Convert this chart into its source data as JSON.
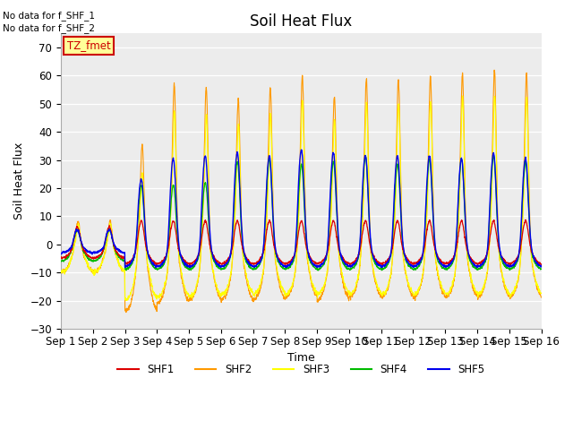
{
  "title": "Soil Heat Flux",
  "ylabel": "Soil Heat Flux",
  "xlabel": "Time",
  "ylim": [
    -30,
    75
  ],
  "yticks": [
    -30,
    -20,
    -10,
    0,
    10,
    20,
    30,
    40,
    50,
    60,
    70
  ],
  "n_days": 15,
  "legend_labels": [
    "SHF1",
    "SHF2",
    "SHF3",
    "SHF4",
    "SHF5"
  ],
  "legend_colors": [
    "#dd0000",
    "#ff9900",
    "#ffff00",
    "#00bb00",
    "#0000ee"
  ],
  "tz_label": "TZ_fmet",
  "tz_color": "#cc0000",
  "tz_bg": "#ffff99",
  "annotation1": "No data for f_SHF_1",
  "annotation2": "No data for f_SHF_2",
  "bg_color": "#ececec",
  "title_fontsize": 12,
  "label_fontsize": 9,
  "tick_fontsize": 8.5
}
